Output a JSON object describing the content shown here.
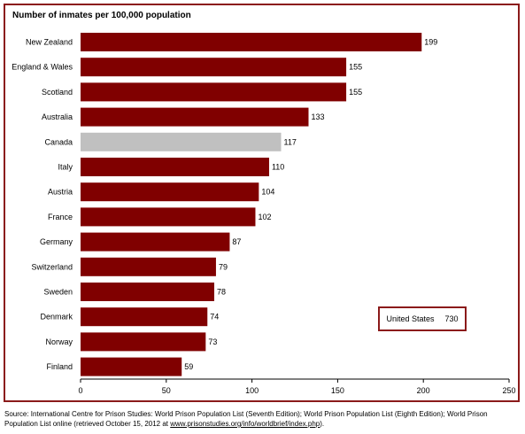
{
  "chart_data": {
    "type": "bar",
    "orientation": "horizontal",
    "title": "Number of inmates per 100,000 population",
    "categories": [
      "New Zealand",
      "England & Wales",
      "Scotland",
      "Australia",
      "Canada",
      "Italy",
      "Austria",
      "France",
      "Germany",
      "Switzerland",
      "Sweden",
      "Denmark",
      "Norway",
      "Finland"
    ],
    "values": [
      199,
      155,
      155,
      133,
      117,
      110,
      104,
      102,
      87,
      79,
      78,
      74,
      73,
      59
    ],
    "highlight_category": "Canada",
    "bar_color": "#800000",
    "highlight_color": "#c0c0c0",
    "xlim": [
      0,
      250
    ],
    "xticks": [
      0,
      50,
      100,
      150,
      200,
      250
    ],
    "grid": false,
    "annotation": {
      "label": "United States",
      "value": "730"
    }
  },
  "source": {
    "prefix": "Source:  International Centre for Prison Studies: World Prison Population List (Seventh Edition); World Prison Population List (Eighth Edition); World Prison Population List online (retrieved October 15, 2012 at ",
    "link": "www.prisonstudies.org/info/worldbrief/index.php",
    "suffix": ")."
  }
}
